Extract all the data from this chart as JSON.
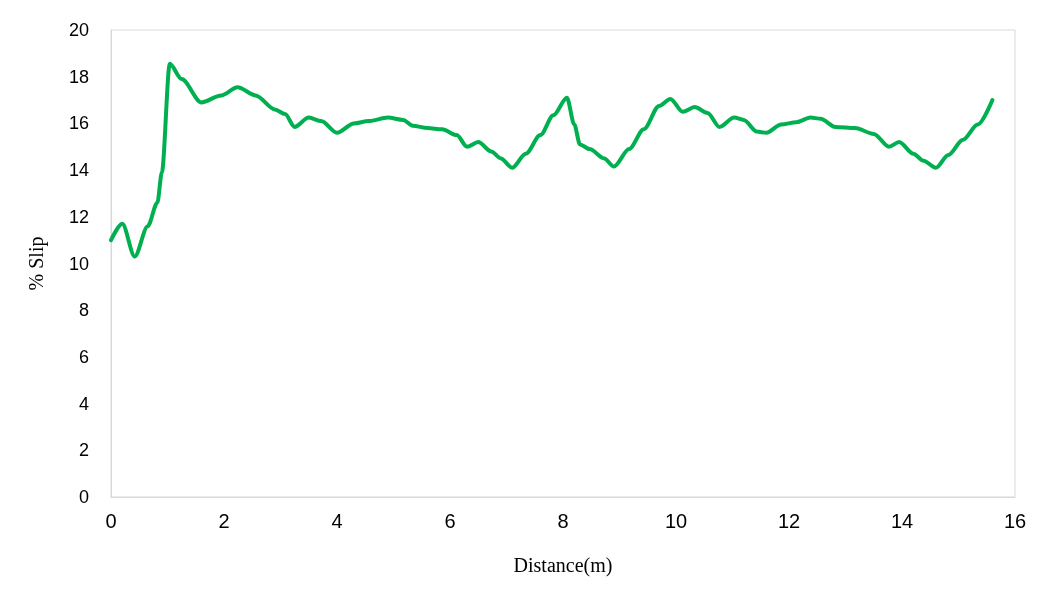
{
  "chart_data": {
    "type": "line",
    "xlabel": "Distance(m)",
    "ylabel": "% Slip",
    "xlim": [
      0,
      16
    ],
    "xticks": [
      0,
      2,
      4,
      6,
      8,
      10,
      12,
      14,
      16
    ],
    "ylim": [
      0,
      20
    ],
    "yticks": [
      0,
      2,
      4,
      6,
      8,
      10,
      12,
      14,
      16,
      18,
      20
    ],
    "grid": false,
    "marker": "none",
    "line_style": "solid",
    "series": [
      {
        "color": "#00b050",
        "x": [
          0,
          0.2,
          0.42,
          0.65,
          0.82,
          0.9,
          1.04,
          1.25,
          1.6,
          1.95,
          2.24,
          2.56,
          2.9,
          3.08,
          3.25,
          3.5,
          3.72,
          4.0,
          4.3,
          4.56,
          4.9,
          5.17,
          5.34,
          5.6,
          5.86,
          6.12,
          6.3,
          6.5,
          6.73,
          6.9,
          7.1,
          7.34,
          7.6,
          7.83,
          8.07,
          8.2,
          8.3,
          8.47,
          8.73,
          8.9,
          9.17,
          9.43,
          9.7,
          9.9,
          10.12,
          10.33,
          10.56,
          10.77,
          11.03,
          11.2,
          11.43,
          11.6,
          11.86,
          12.13,
          12.38,
          12.56,
          12.82,
          13.17,
          13.5,
          13.77,
          13.95,
          14.2,
          14.38,
          14.6,
          14.82,
          15.08,
          15.34,
          15.6
        ],
        "values": [
          11.0,
          11.7,
          10.3,
          11.6,
          12.6,
          13.9,
          18.55,
          17.9,
          16.9,
          17.2,
          17.55,
          17.2,
          16.6,
          16.4,
          15.85,
          16.25,
          16.1,
          15.6,
          16.0,
          16.1,
          16.25,
          16.15,
          15.9,
          15.8,
          15.75,
          15.5,
          15.0,
          15.2,
          14.8,
          14.5,
          14.1,
          14.7,
          15.5,
          16.35,
          17.1,
          15.95,
          15.1,
          14.9,
          14.5,
          14.15,
          14.9,
          15.75,
          16.75,
          17.05,
          16.5,
          16.7,
          16.45,
          15.85,
          16.25,
          16.15,
          15.65,
          15.6,
          15.95,
          16.05,
          16.25,
          16.2,
          15.85,
          15.8,
          15.55,
          15.0,
          15.2,
          14.7,
          14.4,
          14.1,
          14.65,
          15.3,
          15.95,
          17.0
        ]
      }
    ]
  }
}
